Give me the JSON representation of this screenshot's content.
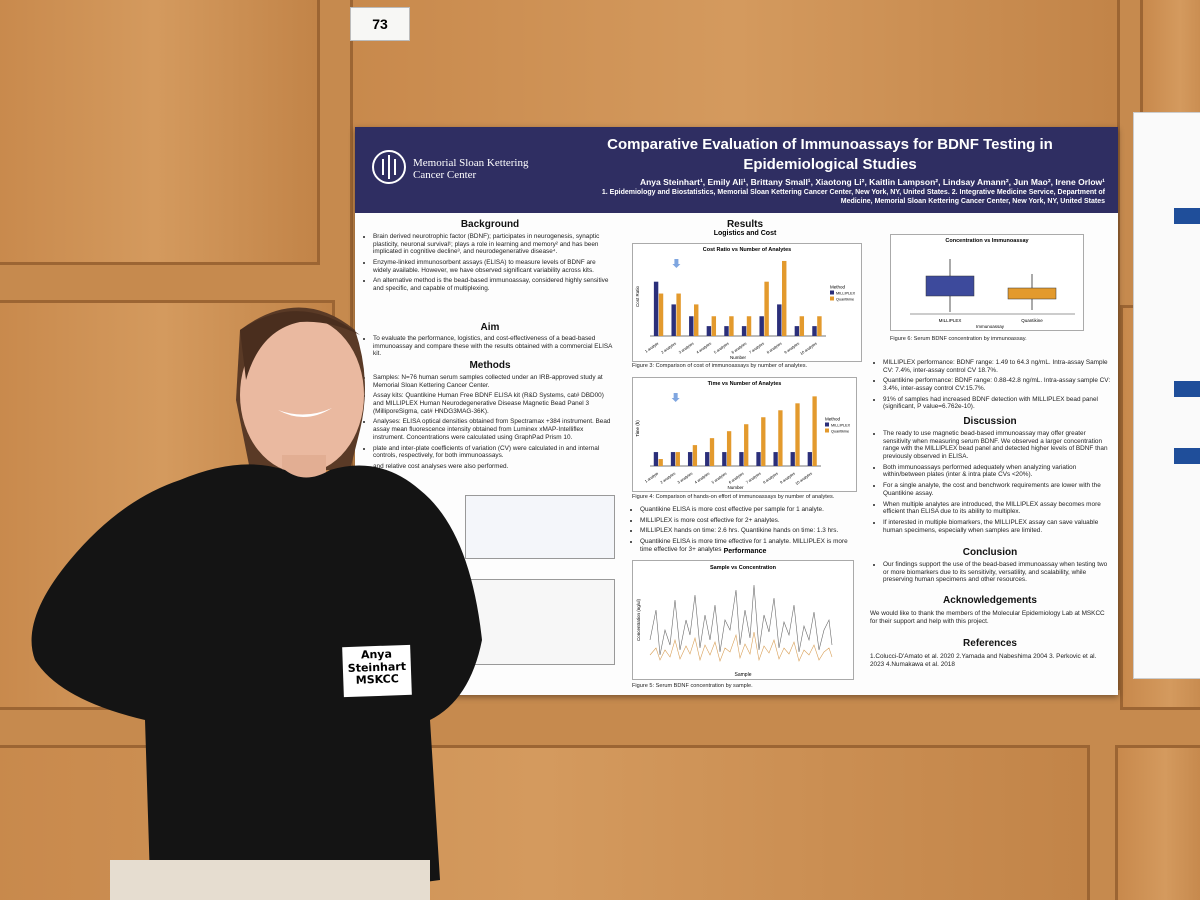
{
  "booth_number": "73",
  "poster": {
    "institution": "Memorial Sloan Kettering Cancer Center",
    "title": "Comparative Evaluation of Immunoassays for BDNF Testing in Epidemiological Studies",
    "authors": "Anya Steinhart¹, Emily Ali¹, Brittany Small¹, Xiaotong Li², Kaitlin Lampson², Lindsay Amann², Jun Mao², Irene Orlow¹",
    "affiliations": "1. Epidemiology and Biostatistics, Memorial Sloan Kettering Cancer Center, New York, NY, United States. 2. Integrative Medicine Service, Department of Medicine, Memorial Sloan Kettering Cancer Center, New York, NY, United States",
    "background": {
      "heading": "Background",
      "bullets": [
        "Brain derived neurotrophic factor (BDNF); participates in neurogenesis, synaptic plasticity, neuronal survival¹; plays a role in learning and memory² and has been implicated in cognitive decline³, and neurodegenerative disease⁴.",
        "Enzyme-linked immunosorbent assays (ELISA) to measure levels of BDNF are widely available. However, we have observed significant variability across kits.",
        "An alternative method is the bead-based immunoassay, considered highly sensitive and specific, and capable of multiplexing."
      ]
    },
    "aim": {
      "heading": "Aim",
      "bullets": [
        "To evaluate the performance, logistics, and cost-effectiveness of a bead-based immunoassay and compare these with the results obtained with a commercial ELISA kit."
      ]
    },
    "methods": {
      "heading": "Methods",
      "bullets": [
        "Samples: N=76 human serum samples collected under an IRB-approved study at Memorial Sloan Kettering Cancer Center.",
        "Assay kits: Quantikine Human Free BDNF ELISA kit (R&D Systems, cat# DBD00) and MILLIPLEX Human Neurodegenerative Disease Magnetic Bead Panel 3 (MilliporeSigma, cat# HNDG3MAG-36K).",
        "Analyses: ELISA optical densities obtained from Spectramax +384 instrument. Bead assay mean fluorescence intensity obtained from Luminex xMAP-Intelliflex instrument. Concentrations were calculated using GraphPad Prism 10.",
        "plate and inter-plate coefficients of variation (CV) were calculated in and internal controls, respectively, for both immunoassays.",
        "and relative cost analyses were also performed."
      ]
    },
    "results": {
      "heading": "Results",
      "subheading": "Logistics and Cost",
      "cost_chart": {
        "title": "Cost Ratio vs Number of Analytes",
        "y_label": "Cost Ratio",
        "x_label": "Number",
        "legend_title": "Method",
        "categories": [
          "1 analyte",
          "2 analytes",
          "3 analytes",
          "4 analytes",
          "5 analytes",
          "6 analytes",
          "7 analytes",
          "8 analytes",
          "9 analytes",
          "10 analytes"
        ],
        "ylim": [
          0,
          8
        ],
        "series": [
          {
            "name": "MILLIPLEX",
            "color": "#2b2f7a",
            "values": [
              5.5,
              3.2,
              2,
              1,
              1,
              1,
              2,
              3.2,
              1,
              1
            ]
          },
          {
            "name": "Quantikine",
            "color": "#e39a2d",
            "values": [
              4.3,
              4.3,
              3.2,
              2,
              2,
              2,
              5.5,
              7.6,
              2,
              2
            ]
          }
        ]
      },
      "cost_caption": "Figure 3: Comparison of cost of immunoassays by number of analytes.",
      "time_chart": {
        "title": "Time vs Number of Analytes",
        "y_label": "Time (h)",
        "x_label": "Number",
        "legend_title": "Method",
        "categories": [
          "1 analyte",
          "2 analytes",
          "3 analytes",
          "4 analytes",
          "5 analytes",
          "6 analytes",
          "7 analytes",
          "8 analytes",
          "9 analytes",
          "10 analytes"
        ],
        "ylim": [
          0,
          14
        ],
        "series": [
          {
            "name": "MILLIPLEX",
            "color": "#2b2f7a",
            "values": [
              2.6,
              2.6,
              2.6,
              2.6,
              2.6,
              2.6,
              2.6,
              2.6,
              2.6,
              2.6
            ]
          },
          {
            "name": "Quantikine",
            "color": "#e39a2d",
            "values": [
              1.3,
              2.6,
              3.9,
              5.2,
              6.5,
              7.8,
              9.1,
              10.4,
              11.7,
              13
            ]
          }
        ]
      },
      "time_caption": "Figure 4: Comparison of hands-on effort of immunoassays by number of analytes.",
      "bullets": [
        "Quantikine ELISA is more cost effective per sample for 1 analyte.",
        "MILLIPLEX is more cost effective for 2+ analytes.",
        "MILLIPLEX hands on time: 2.6 hrs. Quantikine hands on time: 1.3 hrs.",
        "Quantikine ELISA is more time effective for 1 analyte. MILLIPLEX is more time effective for 3+ analytes"
      ],
      "performance_heading": "Performance",
      "sample_chart_title": "Sample vs Concentration",
      "sample_x_label": "Sample",
      "sample_y_label": "Concentration (ng/ul)",
      "sample_caption": "Figure 5: Serum BDNF concentration by sample.",
      "box_chart_title": "Concentration vs Immunoassay",
      "box_x_label": "Immunoassay",
      "box_categories": [
        "MILLIPLEX",
        "Quantikine"
      ],
      "box_caption": "Figure 6: Serum BDNF concentration by immunoassay.",
      "performance_bullets": [
        "MILLIPLEX performance: BDNF range: 1.49 to 64.3 ng/mL. Intra-assay Sample CV: 7.4%, inter-assay control CV 18.7%.",
        "Quantikine performance: BDNF range: 0.88-42.8 ng/mL. Intra-assay sample CV: 3.4%, inter-assay control CV:15.7%.",
        "91% of samples had increased BDNF detection with MILLIPLEX bead panel (significant, P value=6.762e-10)."
      ]
    },
    "discussion": {
      "heading": "Discussion",
      "bullets": [
        "The ready to use magnetic bead-based immunoassay may offer greater sensitivity when measuring serum BDNF. We observed a larger concentration range with the MILLIPLEX bead panel and detected higher levels of BDNF than previously observed in ELISA.",
        "Both immunoassays performed adequately when analyzing variation within/between plates (inter & intra plate CVs <20%).",
        "For a single analyte, the cost and benchwork requirements are lower with the Quantikine assay.",
        "When multiple analytes are introduced, the MILLIPLEX assay becomes more efficient than ELISA due to its ability to multiplex.",
        "If interested in multiple biomarkers, the MILLIPLEX assay can save valuable human specimens, especially when samples are limited."
      ]
    },
    "conclusion": {
      "heading": "Conclusion",
      "bullets": [
        "Our findings support the use of the bead-based immunoassay when testing two or more biomarkers due to its sensitivity, versatility, and scalability, while preserving human specimens and other resources."
      ]
    },
    "acknowledgements": {
      "heading": "Acknowledgements",
      "text": "We would like to thank the members of the Molecular Epidemiology Lab at MSKCC for their support and help with this project."
    },
    "references": {
      "heading": "References",
      "text": "1.Colucci-D'Amato et al. 2020 2.Yamada and Nabeshima 2004 3. Perkovic et al. 2023 4.Numakawa et al. 2018"
    }
  },
  "name_tag": [
    "Anya",
    "Steinhart",
    "MSKCC"
  ]
}
